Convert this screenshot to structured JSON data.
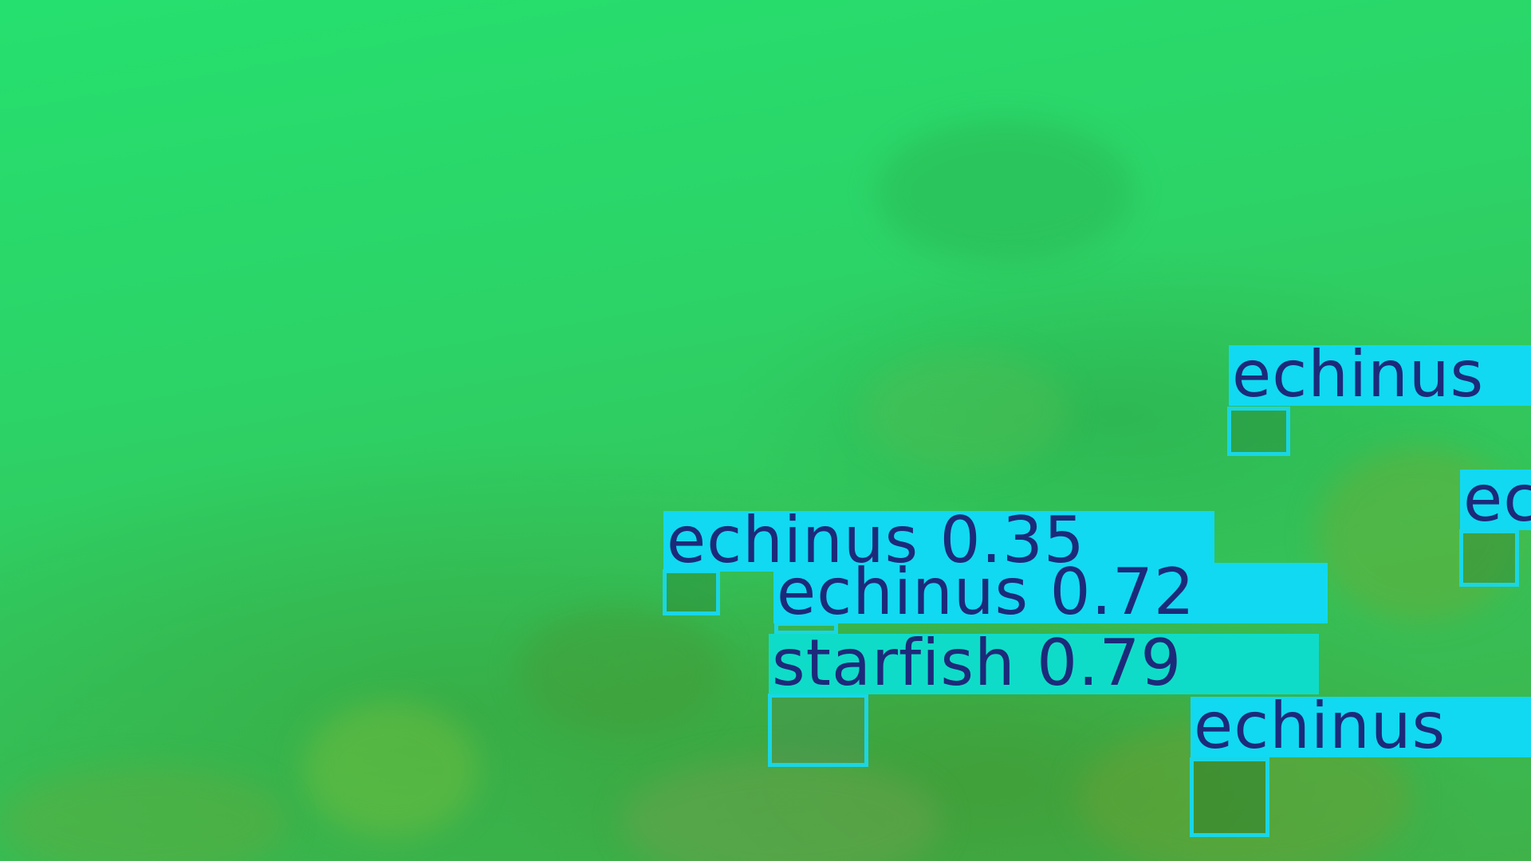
{
  "detections": [
    {
      "label": "echinus"
    },
    {
      "label": "ec"
    },
    {
      "label": "echinus 0.35"
    },
    {
      "label": "echinus 0.72"
    },
    {
      "label": "starfish 0.79"
    },
    {
      "label": "echinus"
    }
  ],
  "colors": {
    "water": "#2bd66a",
    "echinus_label_bg": "#11d9f2",
    "starfish_label_bg": "#0fdcc8",
    "label_text": "#1c2a7a",
    "box_border": "#19d6e6"
  }
}
